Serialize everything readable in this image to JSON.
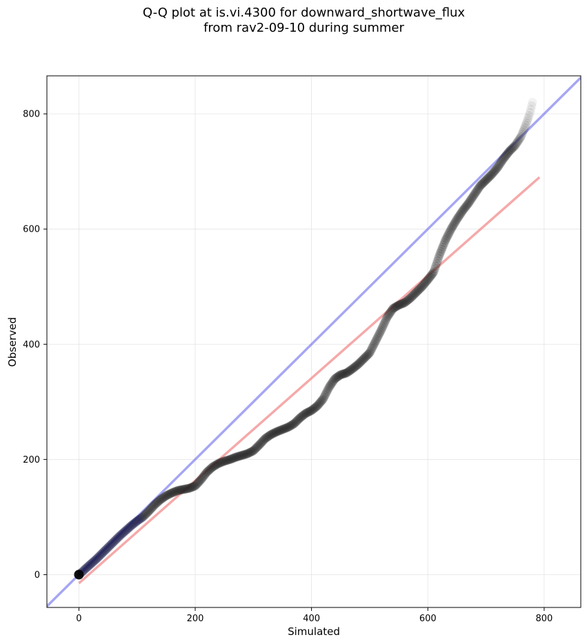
{
  "chart_data": {
    "type": "scatter",
    "title_line1": "Q-Q plot at is.vi.4300 for downward_shortwave_flux",
    "title_line2": "from rav2-09-10 during summer",
    "xlabel": "Simulated",
    "ylabel": "Observed",
    "xlim": [
      -55,
      863
    ],
    "ylim": [
      -57,
      866
    ],
    "xticks": [
      0,
      200,
      400,
      600,
      800
    ],
    "yticks": [
      0,
      200,
      400,
      600,
      800
    ],
    "grid": true,
    "colors": {
      "points": "#222222",
      "identity_line": "#7777ee",
      "fit_line": "#f28c8c"
    },
    "identity_line": {
      "x": [
        -55,
        863
      ],
      "y": [
        -55,
        863
      ]
    },
    "fit_line": {
      "x": [
        0,
        792
      ],
      "y": [
        -15,
        690
      ]
    },
    "quantiles": {
      "x": [
        0,
        5,
        10,
        20,
        30,
        40,
        50,
        60,
        70,
        80,
        90,
        100,
        110,
        120,
        130,
        140,
        150,
        160,
        170,
        180,
        190,
        200,
        210,
        220,
        230,
        240,
        250,
        260,
        270,
        280,
        290,
        300,
        310,
        320,
        330,
        340,
        350,
        360,
        370,
        380,
        390,
        400,
        410,
        420,
        430,
        440,
        450,
        460,
        470,
        480,
        490,
        500,
        510,
        520,
        530,
        540,
        550,
        560,
        570,
        580,
        590,
        600,
        610,
        620,
        630,
        640,
        650,
        660,
        670,
        680,
        690,
        700,
        710,
        720,
        730,
        740,
        750,
        760,
        765,
        770,
        775,
        780
      ],
      "y": [
        0,
        4,
        9,
        18,
        27,
        37,
        47,
        57,
        67,
        76,
        85,
        93,
        100,
        110,
        121,
        130,
        137,
        142,
        146,
        148,
        150,
        154,
        165,
        178,
        187,
        193,
        197,
        200,
        204,
        207,
        210,
        215,
        225,
        236,
        243,
        248,
        252,
        256,
        262,
        272,
        280,
        285,
        293,
        305,
        325,
        340,
        347,
        350,
        357,
        365,
        375,
        385,
        405,
        425,
        447,
        462,
        468,
        472,
        480,
        490,
        500,
        512,
        525,
        555,
        580,
        600,
        617,
        632,
        645,
        660,
        675,
        685,
        695,
        707,
        722,
        735,
        745,
        760,
        772,
        785,
        800,
        820
      ]
    }
  }
}
